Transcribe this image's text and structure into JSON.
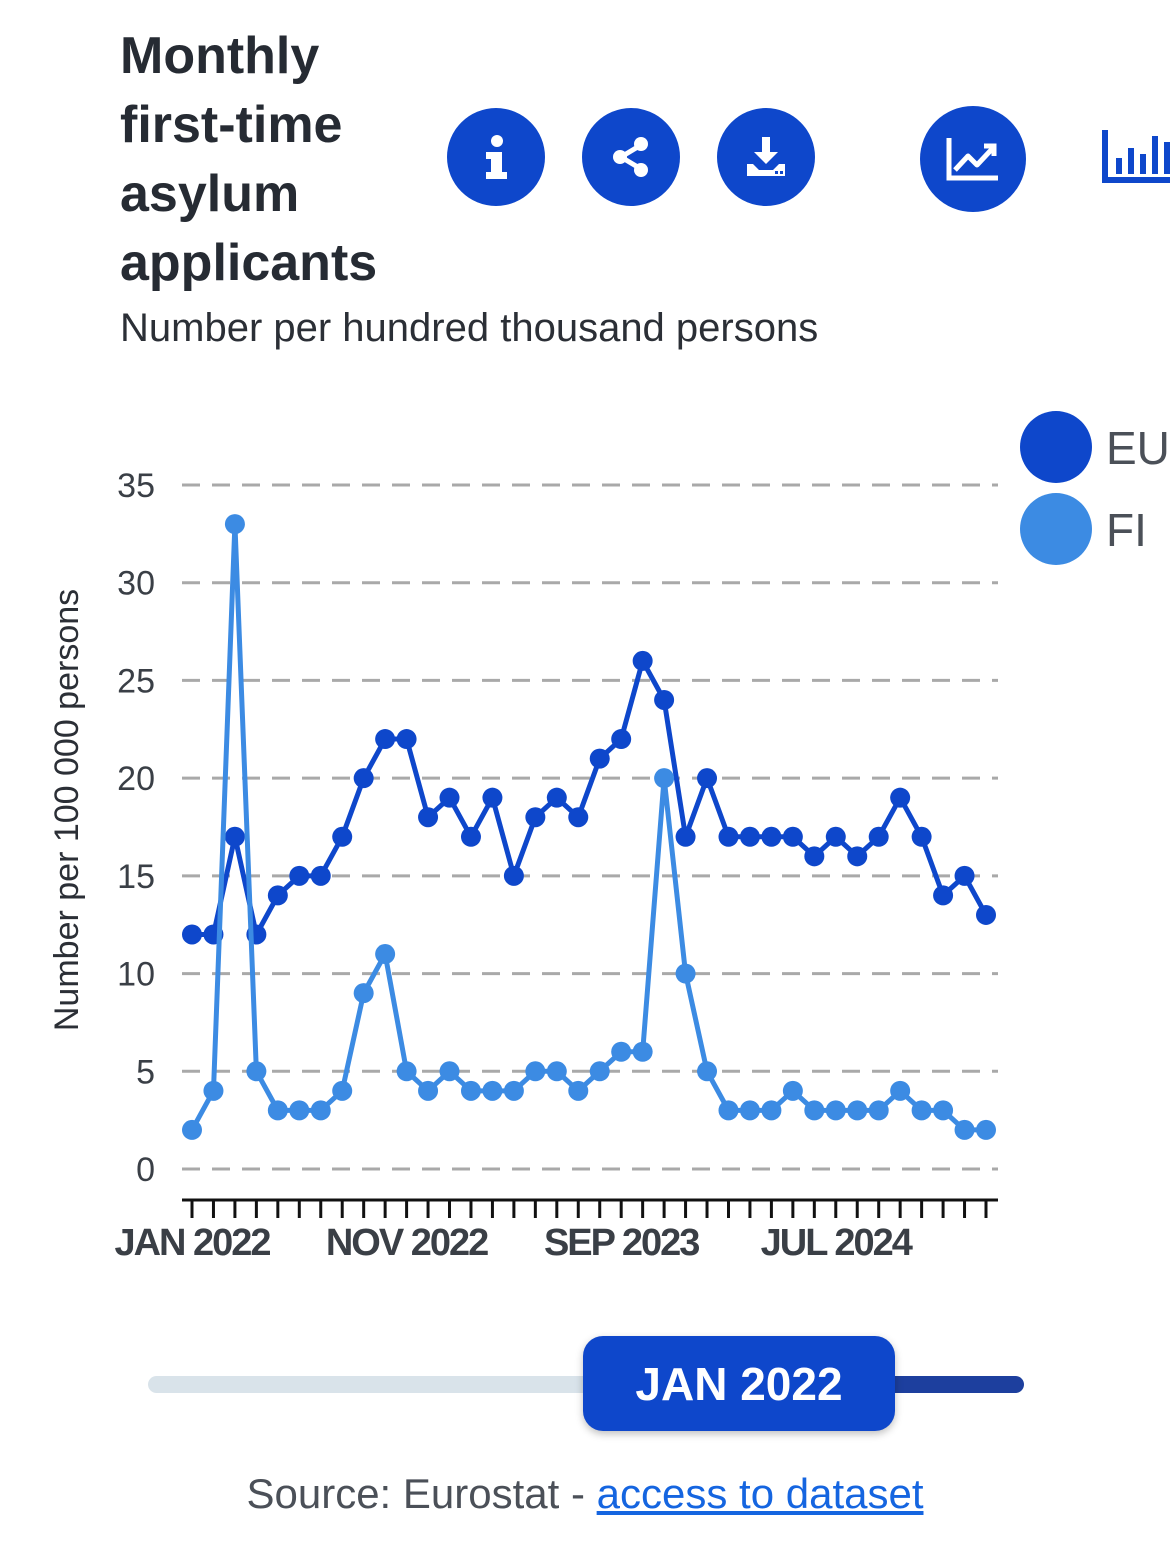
{
  "header": {
    "title": "Monthly first-time asylum applicants",
    "subtitle": "Number per hundred thousand persons"
  },
  "toolbar": {
    "info_icon": "info-icon",
    "share_icon": "share-icon",
    "download_icon": "download-icon",
    "line_chart_icon": "line-chart-icon",
    "bar_chart_icon": "bar-chart-icon"
  },
  "colors": {
    "eu": "#0e47cb",
    "fi": "#3c8be3",
    "accent": "#0e47cb",
    "grid": "#a9a9a9"
  },
  "chart_data": {
    "type": "line",
    "title": "Monthly first-time asylum applicants",
    "subtitle": "Number per hundred thousand persons",
    "ylabel": "Number per 100 000 persons",
    "xlabel": "",
    "ylim": [
      0,
      35
    ],
    "yticks": [
      0,
      5,
      10,
      15,
      20,
      25,
      30,
      35
    ],
    "x_tick_labels": [
      {
        "index": 0,
        "label": "JAN 2022"
      },
      {
        "index": 10,
        "label": "NOV 2022"
      },
      {
        "index": 20,
        "label": "SEP 2023"
      },
      {
        "index": 30,
        "label": "JUL 2024"
      }
    ],
    "x_count": 38,
    "grid": true,
    "legend_position": "top-right",
    "series": [
      {
        "name": "EU",
        "color": "#0e47cb",
        "values": [
          12,
          12,
          17,
          12,
          14,
          15,
          15,
          17,
          20,
          22,
          22,
          18,
          19,
          17,
          19,
          15,
          18,
          19,
          18,
          21,
          22,
          26,
          24,
          17,
          20,
          17,
          17,
          17,
          17,
          16,
          17,
          16,
          17,
          19,
          17,
          14,
          15,
          13
        ]
      },
      {
        "name": "FI",
        "color": "#3c8be3",
        "values": [
          2,
          4,
          33,
          5,
          3,
          3,
          3,
          4,
          9,
          11,
          5,
          4,
          5,
          4,
          4,
          4,
          5,
          5,
          4,
          5,
          6,
          6,
          20,
          10,
          5,
          3,
          3,
          3,
          4,
          3,
          3,
          3,
          3,
          4,
          3,
          3,
          2,
          2
        ]
      }
    ]
  },
  "slider": {
    "label": "JAN 2022"
  },
  "footer": {
    "source_prefix": "Source: Eurostat - ",
    "link_text": "access to dataset"
  }
}
